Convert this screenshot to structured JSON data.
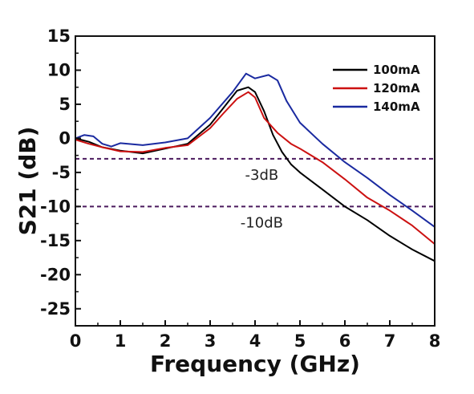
{
  "chart_data": {
    "type": "line",
    "xlabel": "Frequency (GHz)",
    "ylabel": "S21 (dB)",
    "xlim": [
      0,
      8
    ],
    "ylim": [
      -27.5,
      15
    ],
    "x_ticks": [
      0,
      1,
      2,
      3,
      4,
      5,
      6,
      7,
      8
    ],
    "y_ticks": [
      15,
      10,
      5,
      0,
      -5,
      -10,
      -15,
      -20,
      -25
    ],
    "grid": false,
    "legend_position": "top-right",
    "reference_lines": [
      {
        "y": -3,
        "label": "-3dB",
        "color": "#4b1a5e"
      },
      {
        "y": -10,
        "label": "-10dB",
        "color": "#4b1a5e"
      }
    ],
    "series": [
      {
        "name": "100mA",
        "color": "#000000",
        "x": [
          0,
          0.3,
          0.6,
          1.0,
          1.5,
          2.0,
          2.5,
          3.0,
          3.3,
          3.6,
          3.85,
          4.0,
          4.2,
          4.4,
          4.6,
          4.8,
          5.0,
          5.5,
          6.0,
          6.5,
          7.0,
          7.5,
          8.0
        ],
        "values": [
          0,
          -0.5,
          -1.3,
          -1.8,
          -2.2,
          -1.5,
          -0.8,
          2.0,
          4.5,
          7.0,
          7.5,
          6.8,
          4.0,
          0.5,
          -2.0,
          -3.8,
          -5.0,
          -7.5,
          -10.0,
          -12.0,
          -14.3,
          -16.3,
          -18.0
        ]
      },
      {
        "name": "120mA",
        "color": "#cc1111",
        "x": [
          0,
          0.3,
          0.6,
          1.0,
          1.5,
          2.0,
          2.5,
          3.0,
          3.3,
          3.6,
          3.85,
          4.0,
          4.2,
          4.5,
          4.8,
          5.0,
          5.5,
          6.0,
          6.5,
          7.0,
          7.5,
          8.0
        ],
        "values": [
          -0.2,
          -0.8,
          -1.3,
          -1.9,
          -2.0,
          -1.4,
          -1.0,
          1.5,
          3.7,
          5.8,
          6.8,
          6.0,
          3.0,
          0.8,
          -0.8,
          -1.5,
          -3.5,
          -6.0,
          -8.7,
          -10.6,
          -12.8,
          -15.5
        ]
      },
      {
        "name": "140mA",
        "color": "#1a2aa0",
        "x": [
          0,
          0.2,
          0.4,
          0.6,
          0.8,
          1.0,
          1.5,
          2.0,
          2.5,
          3.0,
          3.5,
          3.8,
          4.0,
          4.3,
          4.5,
          4.7,
          5.0,
          5.5,
          6.0,
          6.5,
          7.0,
          7.5,
          8.0
        ],
        "values": [
          0,
          0.5,
          0.3,
          -0.8,
          -1.2,
          -0.7,
          -1.0,
          -0.6,
          0.0,
          3.0,
          6.8,
          9.5,
          8.8,
          9.3,
          8.5,
          5.5,
          2.3,
          -0.8,
          -3.5,
          -5.8,
          -8.3,
          -10.6,
          -13.0
        ]
      }
    ]
  }
}
